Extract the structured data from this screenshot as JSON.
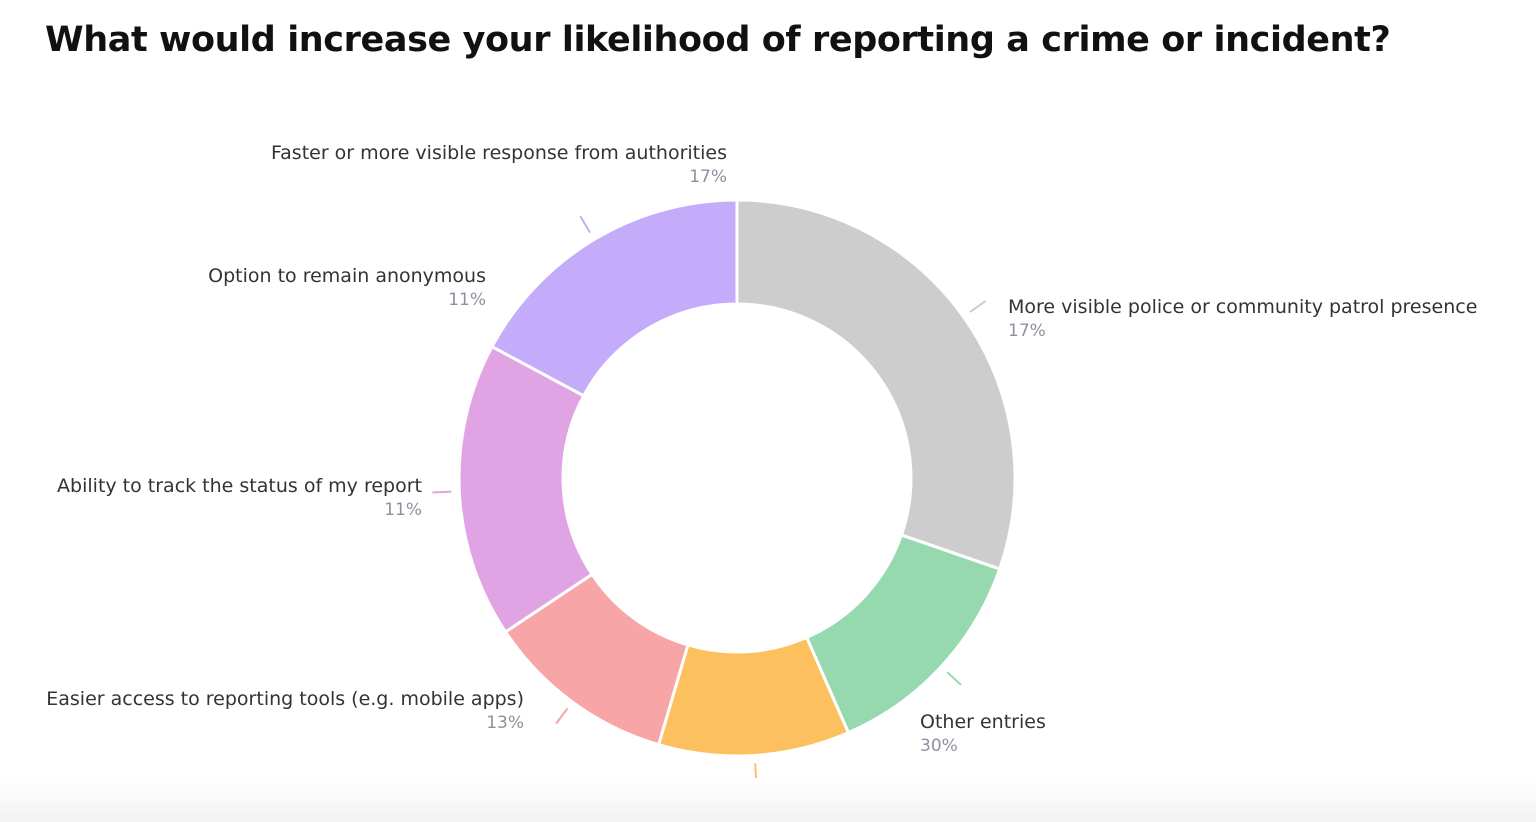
{
  "chart_data": {
    "type": "pie",
    "donut": true,
    "title": "What would increase your likelihood of reporting a crime or incident?",
    "start_angle_deg": 90,
    "direction": "counterclockwise",
    "slices": [
      {
        "label": "More visible police or community patrol presence",
        "value": 17,
        "display": "17%",
        "color": "#c5acfb"
      },
      {
        "label": "Faster or more visible response from authorities",
        "value": 17,
        "display": "17%",
        "color": "#e0a3e3"
      },
      {
        "label": "Option to remain anonymous",
        "value": 11,
        "display": "11%",
        "color": "#f7a5a6"
      },
      {
        "label": "Ability to track the status of my report",
        "value": 11,
        "display": "11%",
        "color": "#fdc05e"
      },
      {
        "label": "Easier access to reporting tools (e.g. mobile apps)",
        "value": 13,
        "display": "13%",
        "color": "#96d9ae"
      },
      {
        "label": "Other entries",
        "value": 30,
        "display": "30%",
        "color": "#cdcdcd"
      }
    ]
  }
}
